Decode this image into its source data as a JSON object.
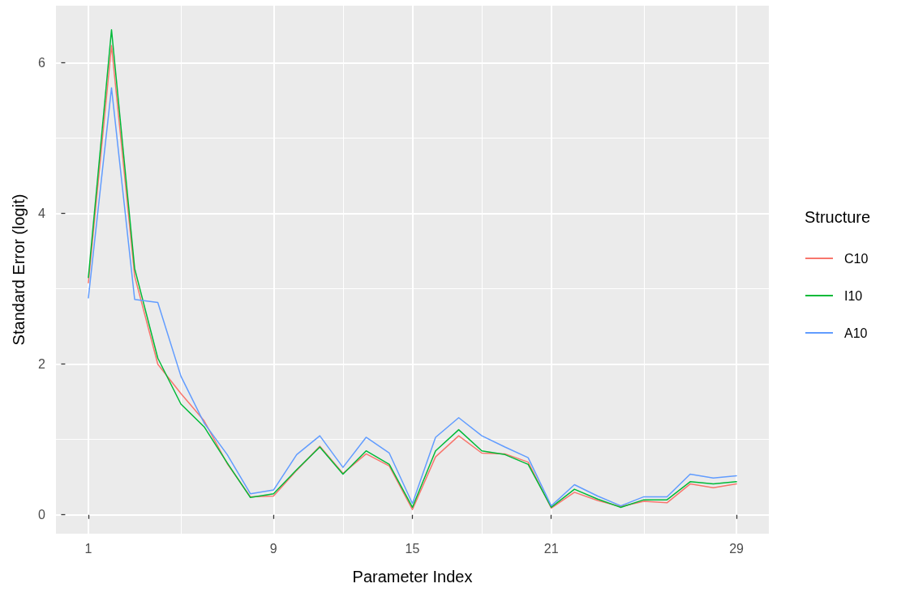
{
  "chart_data": {
    "type": "line",
    "xlabel": "Parameter Index",
    "ylabel": "Standard Error (logit)",
    "legend_title": "Structure",
    "x": [
      1,
      2,
      3,
      4,
      5,
      6,
      7,
      8,
      9,
      10,
      11,
      12,
      13,
      14,
      15,
      16,
      17,
      18,
      19,
      20,
      21,
      22,
      23,
      24,
      25,
      26,
      27,
      28,
      29
    ],
    "series": [
      {
        "name": "C10",
        "color": "#f8766d",
        "values": [
          3.08,
          6.23,
          3.17,
          2.0,
          1.61,
          1.25,
          0.68,
          0.24,
          0.25,
          0.59,
          0.91,
          0.55,
          0.81,
          0.65,
          0.07,
          0.77,
          1.05,
          0.82,
          0.81,
          0.7,
          0.09,
          0.3,
          0.19,
          0.11,
          0.18,
          0.16,
          0.41,
          0.36,
          0.41
        ]
      },
      {
        "name": "I10",
        "color": "#00ba38",
        "values": [
          3.15,
          6.44,
          3.27,
          2.08,
          1.47,
          1.17,
          0.69,
          0.23,
          0.28,
          0.6,
          0.9,
          0.54,
          0.85,
          0.67,
          0.1,
          0.85,
          1.13,
          0.85,
          0.8,
          0.67,
          0.1,
          0.34,
          0.21,
          0.1,
          0.2,
          0.2,
          0.44,
          0.41,
          0.44
        ]
      },
      {
        "name": "A10",
        "color": "#619cff",
        "values": [
          2.88,
          5.67,
          2.86,
          2.82,
          1.84,
          1.22,
          0.8,
          0.28,
          0.33,
          0.8,
          1.05,
          0.63,
          1.03,
          0.82,
          0.15,
          1.03,
          1.29,
          1.05,
          0.9,
          0.76,
          0.12,
          0.4,
          0.25,
          0.12,
          0.24,
          0.24,
          0.54,
          0.49,
          0.52
        ]
      }
    ],
    "xlim": [
      -0.4,
      30.4
    ],
    "ylim": [
      -0.25,
      6.76
    ],
    "xticks": [
      1,
      {
        "value": 5,
        "label": null
      },
      9,
      {
        "value": 12,
        "label": null
      },
      15,
      {
        "value": 18,
        "label": null
      },
      21,
      {
        "value": 25,
        "label": null
      },
      29
    ],
    "yticks": [
      0,
      {
        "value": 1,
        "label": null
      },
      2,
      {
        "value": 3,
        "label": null
      },
      4,
      {
        "value": 5,
        "label": null
      },
      6
    ],
    "grid": true,
    "legend": "right",
    "marker": "none",
    "line_style": "solid"
  }
}
